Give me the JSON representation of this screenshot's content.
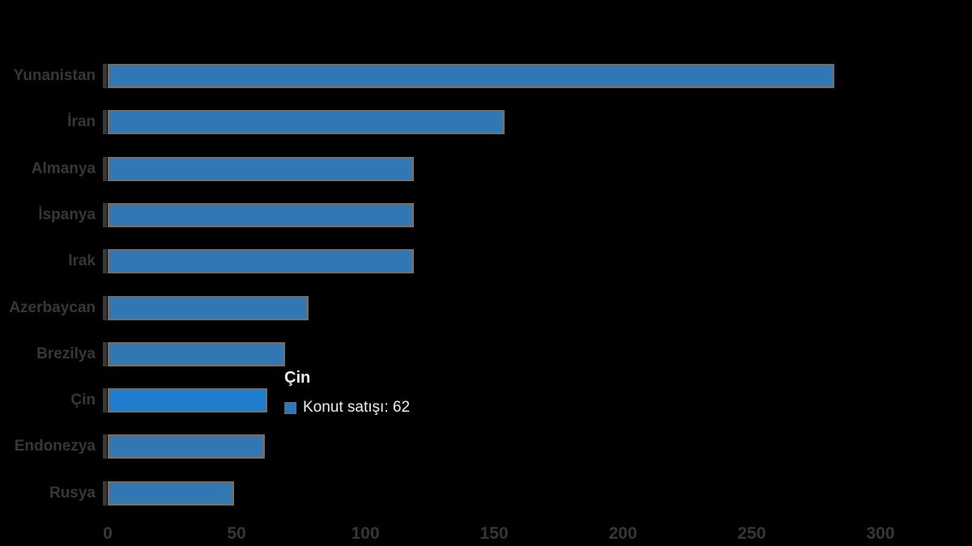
{
  "chart_data": {
    "type": "bar",
    "orientation": "horizontal",
    "title": "",
    "categories": [
      "Yunanistan",
      "İran",
      "Almanya",
      "İspanya",
      "Irak",
      "Azerbaycan",
      "Brezilya",
      "Çin",
      "Endonezya",
      "Rusya"
    ],
    "series": [
      {
        "name": "Konut satışı",
        "values": [
          282,
          154,
          119,
          119,
          119,
          78,
          69,
          62,
          61,
          49
        ]
      }
    ],
    "xlabel": "",
    "ylabel": "",
    "x_ticks": [
      0,
      50,
      100,
      150,
      200,
      250,
      300
    ],
    "xlim": [
      0,
      300
    ],
    "grid": false,
    "legend_visible": false,
    "hover_index": 7,
    "colors": {
      "background": "#000000",
      "bar": "#3077b4",
      "bar_hover": "#1f7ecb",
      "bar_border": "#6e6e6e",
      "axis_text": "#373737",
      "tooltip_text": "#eeeeee"
    }
  },
  "tooltip": {
    "category": "Çin",
    "series_label": "Konut satışı",
    "value": "62"
  }
}
